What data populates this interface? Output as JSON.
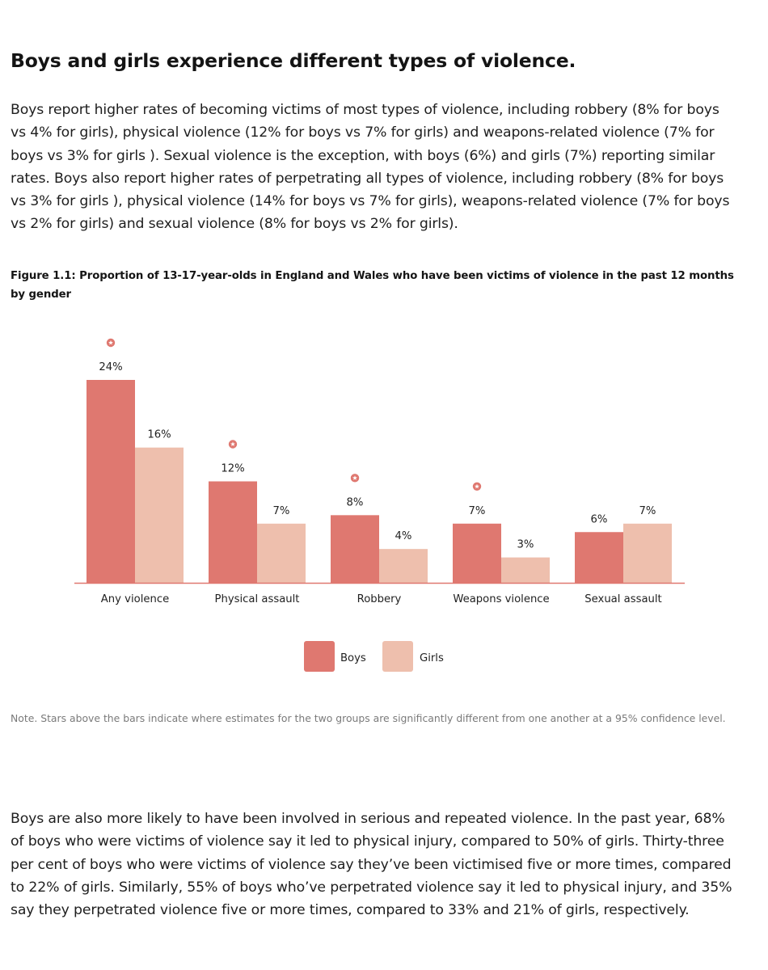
{
  "section": {
    "heading": "Boys and girls experience different types of violence.",
    "intro": "Boys report higher rates of becoming victims of most types of violence, including robbery (8% for boys vs 4% for girls), physical violence (12% for boys vs 7% for girls) and weapons-related violence (7% for boys vs 3% for girls ). Sexual violence is the exception, with boys (6%) and girls (7%) reporting similar rates. Boys also report higher rates of perpetrating all types of violence, including robbery (8% for boys vs 3% for girls ), physical violence (14% for boys vs 7% for girls), weapons-related violence (7% for boys vs 2% for girls) and sexual violence (8% for boys vs 2% for girls).",
    "figure_caption": "Figure 1.1: Proportion of 13-17-year-olds in England and Wales who have been victims of violence in the past 12 months by gender",
    "note": "Note. Stars above the bars indicate where estimates for the two groups are significantly different from one another at a 95% confidence level.",
    "outro": "Boys are also more likely to have been involved in serious and repeated violence. In the past year, 68% of boys who were victims of violence say it led to physical injury, compared to 50% of girls. Thirty-three per cent of boys who were victims of violence say they’ve been victimised five or more times, compared to 22% of girls. Similarly, 55% of boys who’ve perpetrated violence say it led to physical injury, and 35% say they perpetrated violence five or more times, compared to 33% and 21% of girls, respectively."
  },
  "chart_data": {
    "type": "bar",
    "categories": [
      "Any violence",
      "Physical assault",
      "Robbery",
      "Weapons violence",
      "Sexual assault"
    ],
    "series": [
      {
        "name": "Boys",
        "values": [
          24,
          12,
          8,
          7,
          6
        ],
        "labels": [
          "24%",
          "12%",
          "8%",
          "7%",
          "6%"
        ],
        "color": "#df7870"
      },
      {
        "name": "Girls",
        "values": [
          16,
          7,
          4,
          3,
          7
        ],
        "labels": [
          "16%",
          "7%",
          "4%",
          "3%",
          "7%"
        ],
        "color": "#eebfad"
      }
    ],
    "significant": [
      true,
      true,
      true,
      true,
      false
    ],
    "significance_marker": "star-icon",
    "marker_color": "#df7870",
    "axis_color": "#df7870",
    "label_color": "#222222",
    "ylim": [
      0,
      24
    ],
    "xlabel": "",
    "ylabel": "",
    "grid": false,
    "legend_position": "bottom-center"
  }
}
